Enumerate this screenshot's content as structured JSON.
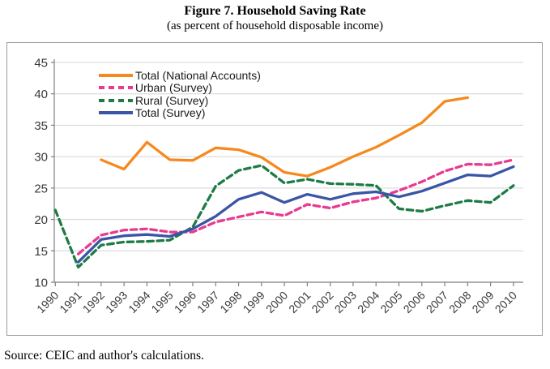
{
  "figure": {
    "title": "Figure 7. Household Saving Rate",
    "subtitle": "(as percent of household disposable income)",
    "source": "Source: CEIC and author's calculations."
  },
  "colors": {
    "orange": "#F6891E",
    "pink": "#E93A90",
    "green": "#1E7B46",
    "blue": "#3A55A5",
    "grid": "#D4D4D4",
    "axis": "#7F7F7F",
    "tick_label": "#3A3A3A",
    "frame_border": "#9B9B9B"
  },
  "chart_data": {
    "type": "line",
    "title": "Figure 7. Household Saving Rate",
    "subtitle": "(as percent of household disposable income)",
    "xlabel": "",
    "ylabel": "",
    "x": [
      1990,
      1991,
      1992,
      1993,
      1994,
      1995,
      1996,
      1997,
      1998,
      1999,
      2000,
      2001,
      2002,
      2003,
      2004,
      2005,
      2006,
      2007,
      2008,
      2009,
      2010
    ],
    "ylim": [
      10,
      45
    ],
    "yticks": [
      10,
      15,
      20,
      25,
      30,
      35,
      40,
      45
    ],
    "grid": true,
    "legend_position": "top-left-inside",
    "series": [
      {
        "name": "Total (National Accounts)",
        "color": "#F6891E",
        "style": "solid",
        "x": [
          1992,
          1993,
          1994,
          1995,
          1996,
          1997,
          1998,
          1999,
          2000,
          2001,
          2002,
          2003,
          2004,
          2005,
          2006,
          2007,
          2008
        ],
        "values": [
          29.5,
          28.0,
          32.3,
          29.5,
          29.4,
          31.4,
          31.1,
          29.9,
          27.5,
          26.9,
          28.3,
          30.0,
          31.5,
          33.4,
          35.4,
          38.8,
          39.4
        ]
      },
      {
        "name": "Urban (Survey)",
        "color": "#E93A90",
        "style": "dashed",
        "x": [
          1991,
          1992,
          1993,
          1994,
          1995,
          1996,
          1997,
          1998,
          1999,
          2000,
          2001,
          2002,
          2003,
          2004,
          2005,
          2006,
          2007,
          2008,
          2009,
          2010
        ],
        "values": [
          14.5,
          17.5,
          18.3,
          18.5,
          18.0,
          18.0,
          19.6,
          20.4,
          21.2,
          20.6,
          22.4,
          21.8,
          22.8,
          23.4,
          24.6,
          26.0,
          27.7,
          28.8,
          28.7,
          29.5
        ]
      },
      {
        "name": "Rural (Survey)",
        "color": "#1E7B46",
        "style": "dashed",
        "x": [
          1990,
          1991,
          1992,
          1993,
          1994,
          1995,
          1996,
          1997,
          1998,
          1999,
          2000,
          2001,
          2002,
          2003,
          2004,
          2005,
          2006,
          2007,
          2008,
          2009,
          2010
        ],
        "values": [
          21.5,
          12.4,
          15.9,
          16.4,
          16.5,
          16.7,
          18.8,
          25.3,
          27.8,
          28.6,
          25.8,
          26.4,
          25.7,
          25.6,
          25.4,
          21.7,
          21.3,
          22.2,
          23.0,
          22.7,
          25.4
        ]
      },
      {
        "name": "Total (Survey)",
        "color": "#3A55A5",
        "style": "solid",
        "x": [
          1991,
          1992,
          1993,
          1994,
          1995,
          1996,
          1997,
          1998,
          1999,
          2000,
          2001,
          2002,
          2003,
          2004,
          2005,
          2006,
          2007,
          2008,
          2009,
          2010
        ],
        "values": [
          13.2,
          16.8,
          17.4,
          17.6,
          17.3,
          18.5,
          20.5,
          23.2,
          24.3,
          22.7,
          24.0,
          23.2,
          24.1,
          24.4,
          23.6,
          24.5,
          25.8,
          27.1,
          26.9,
          28.4
        ]
      }
    ]
  }
}
